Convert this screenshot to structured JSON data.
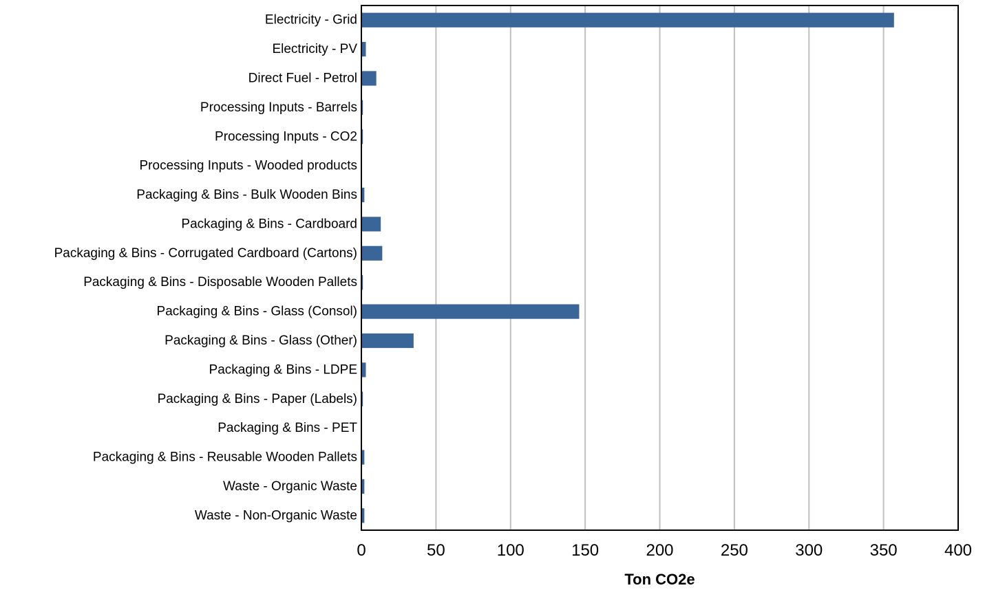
{
  "chart_data": {
    "type": "bar",
    "orientation": "horizontal",
    "categories": [
      "Electricity -  Grid",
      "Electricity -  PV",
      "Direct Fuel -  Petrol",
      "Processing Inputs -  Barrels",
      "Processing Inputs -  CO2",
      "Processing Inputs -  Wooded products",
      "Packaging & Bins -  Bulk Wooden Bins",
      "Packaging & Bins -  Cardboard",
      "Packaging & Bins -  Corrugated Cardboard (Cartons)",
      "Packaging & Bins -  Disposable Wooden Pallets",
      "Packaging & Bins -  Glass (Consol)",
      "Packaging & Bins -  Glass (Other)",
      "Packaging & Bins -  LDPE",
      "Packaging & Bins -  Paper (Labels)",
      "Packaging & Bins -  PET",
      "Packaging & Bins -  Reusable Wooden Pallets",
      "Waste -  Organic Waste",
      "Waste -  Non-Organic Waste"
    ],
    "values": [
      357,
      3,
      10,
      1,
      1,
      0,
      2,
      13,
      14,
      1,
      146,
      35,
      3,
      1,
      0,
      2,
      2,
      2
    ],
    "xlabel": "Ton CO2e",
    "ylabel": "",
    "title": "",
    "xlim": [
      0,
      400
    ],
    "xticks": [
      0,
      50,
      100,
      150,
      200,
      250,
      300,
      350,
      400
    ],
    "grid": "vertical",
    "legend": "none",
    "bar_color": "#3a6598"
  }
}
